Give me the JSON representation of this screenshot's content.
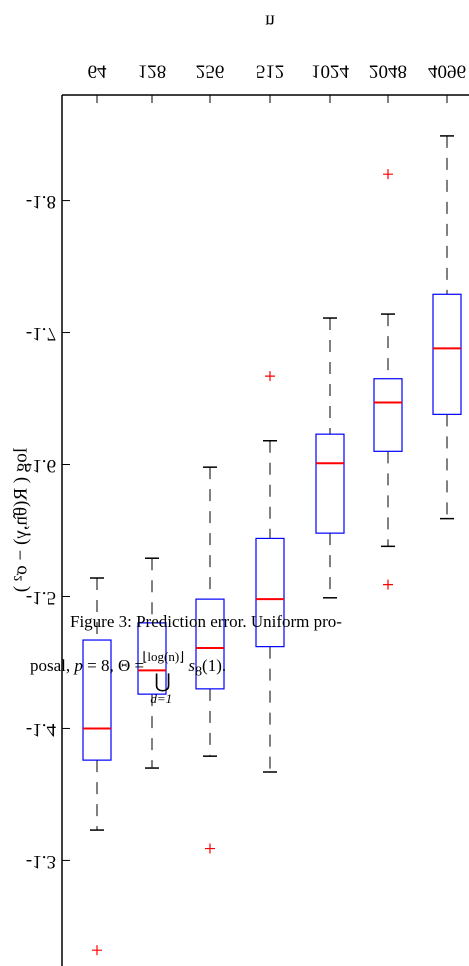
{
  "chart_data": {
    "type": "box",
    "x_label": "n",
    "y_label": "log ( R(θ̂n,γ) − σ² )",
    "categories": [
      "64",
      "128",
      "256",
      "512",
      "1024",
      "2048",
      "4096"
    ],
    "boxes": [
      {
        "low": -1.514,
        "q1": -1.467,
        "median": -1.4,
        "q3": -1.376,
        "high": -1.323,
        "outliers": [
          -1.232
        ]
      },
      {
        "low": -1.529,
        "q1": -1.48,
        "median": -1.444,
        "q3": -1.426,
        "high": -1.37,
        "outliers": []
      },
      {
        "low": -1.598,
        "q1": -1.498,
        "median": -1.461,
        "q3": -1.43,
        "high": -1.379,
        "outliers": [
          -1.309
        ]
      },
      {
        "low": -1.618,
        "q1": -1.544,
        "median": -1.498,
        "q3": -1.462,
        "high": -1.367,
        "outliers": [
          -1.667
        ]
      },
      {
        "low": -1.711,
        "q1": -1.623,
        "median": -1.601,
        "q3": -1.548,
        "high": -1.499,
        "outliers": []
      },
      {
        "low": -1.714,
        "q1": -1.665,
        "median": -1.647,
        "q3": -1.61,
        "high": -1.538,
        "outliers": [
          -1.82,
          -1.509
        ]
      },
      {
        "low": -1.849,
        "q1": -1.729,
        "median": -1.688,
        "q3": -1.638,
        "high": -1.559,
        "outliers": []
      }
    ],
    "box_color": "#0000ff",
    "median_color": "#ff0000",
    "whisker_color": "#000000",
    "outlier_color": "#ff0000",
    "ylim": [
      -1.88,
      -1.22
    ],
    "yticks": [
      {
        "value": -1.8,
        "label": "-1.8"
      },
      {
        "value": -1.7,
        "label": "-1.7"
      },
      {
        "value": -1.6,
        "label": "-1.6"
      },
      {
        "value": -1.5,
        "label": "-1.5"
      },
      {
        "value": -1.4,
        "label": "-1.4"
      },
      {
        "value": -1.3,
        "label": "-1.3"
      }
    ]
  },
  "caption": {
    "line1": "Figure 3: Prediction error. Uniform pro-",
    "line2_start": "posal, ",
    "p": "p",
    "p_value": " = 8, Θ = ",
    "upper": "⌊log(n)⌋",
    "union": "⋃",
    "lower": "d=1",
    "set": "s",
    "set_sub": "8",
    "set_arg": "(1)."
  }
}
